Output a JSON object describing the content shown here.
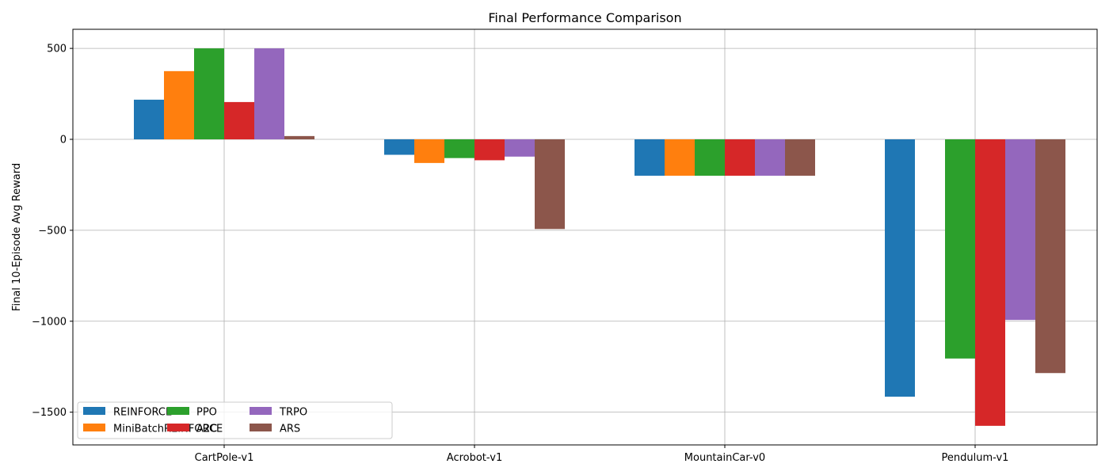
{
  "chart_data": {
    "type": "bar",
    "title": "Final Performance Comparison",
    "xlabel": "",
    "ylabel": "Final 10-Episode Avg Reward",
    "categories": [
      "CartPole-v1",
      "Acrobot-v1",
      "MountainCar-v0",
      "Pendulum-v1"
    ],
    "ylim": [
      -1680,
      605
    ],
    "yticks": [
      500,
      0,
      -500,
      -1000,
      -1500
    ],
    "ytick_labels": [
      "500",
      "0",
      "−500",
      "−1000",
      "−1500"
    ],
    "grid": true,
    "legend_position": "lower-left",
    "legend_columns": 3,
    "series": [
      {
        "name": "REINFORCE",
        "color": "#1f77b4",
        "values": [
          218,
          -85,
          -200,
          -1415
        ]
      },
      {
        "name": "MiniBatchREINFORCE",
        "color": "#ff7f0e",
        "values": [
          375,
          -130,
          -200,
          null
        ]
      },
      {
        "name": "PPO",
        "color": "#2ca02c",
        "values": [
          500,
          -103,
          -200,
          -1205
        ]
      },
      {
        "name": "A2C",
        "color": "#d62728",
        "values": [
          205,
          -115,
          -200,
          -1575
        ]
      },
      {
        "name": "TRPO",
        "color": "#9467bd",
        "values": [
          500,
          -95,
          -200,
          -993
        ]
      },
      {
        "name": "ARS",
        "color": "#8c564b",
        "values": [
          18,
          -493,
          -200,
          -1285
        ]
      }
    ]
  }
}
